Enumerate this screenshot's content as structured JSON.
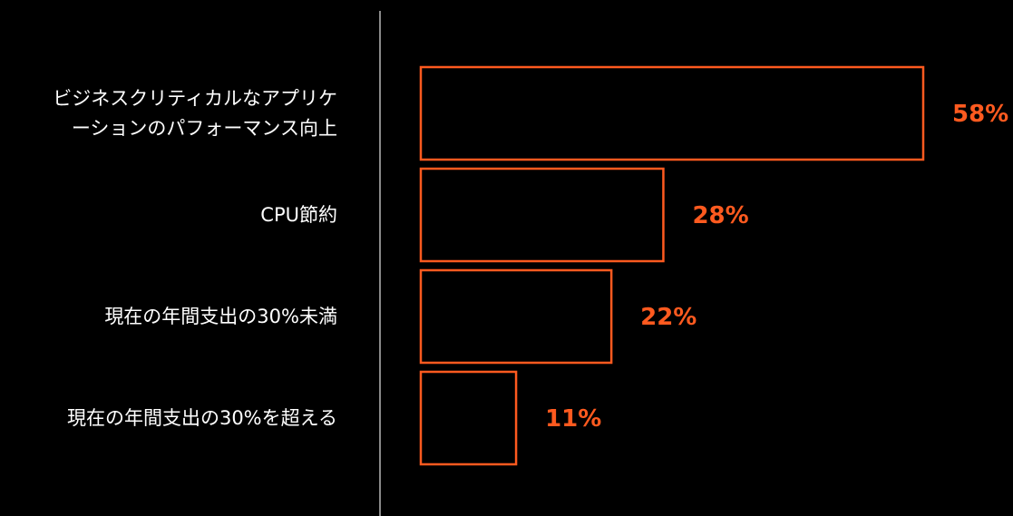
{
  "chart_data": {
    "type": "bar",
    "orientation": "horizontal",
    "categories": [
      "ビジネスクリティカルなアプリケーションのパフォーマンス向上",
      "CPU節約",
      "現在の年間支出の30%未満",
      "現在の年間支出の30%を超える"
    ],
    "category_lines": [
      [
        "ビジネスクリティカルなアプリケ",
        "ーションのパフォーマンス向上"
      ],
      [
        "CPU節約"
      ],
      [
        "現在の年間支出の30%未満"
      ],
      [
        "現在の年間支出の30%を超える"
      ]
    ],
    "values": [
      58,
      28,
      22,
      11
    ],
    "value_labels": [
      "58%",
      "28%",
      "22%",
      "11%"
    ],
    "xlim": [
      0,
      58
    ],
    "unit": "%",
    "grid": false,
    "legend": "none",
    "colors": {
      "bar_outline": "#ff5a1f",
      "value_text": "#ff5a1f",
      "label_text": "#ffffff",
      "divider": "#8a8a8a",
      "background": "#000000"
    }
  }
}
